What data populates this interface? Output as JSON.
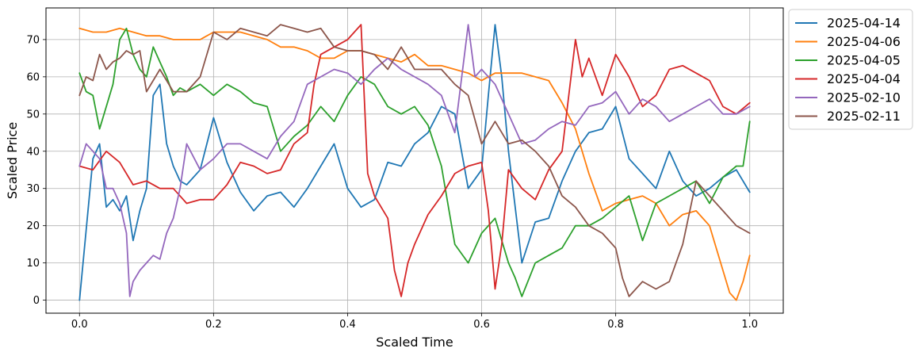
{
  "chart_data": {
    "type": "line",
    "title": "",
    "xlabel": "Scaled Time",
    "ylabel": "Scaled Price",
    "xlim": [
      -0.05,
      1.05
    ],
    "ylim": [
      -3.5,
      78.5
    ],
    "xticks": [
      0.0,
      0.2,
      0.4,
      0.6,
      0.8,
      1.0
    ],
    "xtick_labels": [
      "0.0",
      "0.2",
      "0.4",
      "0.6",
      "0.8",
      "1.0"
    ],
    "yticks": [
      0,
      10,
      20,
      30,
      40,
      50,
      60,
      70
    ],
    "ytick_labels": [
      "0",
      "10",
      "20",
      "30",
      "40",
      "50",
      "60",
      "70"
    ],
    "grid": true,
    "legend_position": "outside-right-top",
    "series": [
      {
        "name": "2025-04-14",
        "color": "#1f77b4",
        "x": [
          0.0,
          0.02,
          0.03,
          0.04,
          0.05,
          0.06,
          0.07,
          0.08,
          0.09,
          0.1,
          0.11,
          0.12,
          0.13,
          0.14,
          0.15,
          0.16,
          0.18,
          0.2,
          0.22,
          0.24,
          0.26,
          0.28,
          0.3,
          0.32,
          0.34,
          0.36,
          0.38,
          0.4,
          0.42,
          0.44,
          0.46,
          0.48,
          0.5,
          0.52,
          0.54,
          0.56,
          0.58,
          0.6,
          0.61,
          0.62,
          0.63,
          0.64,
          0.66,
          0.68,
          0.7,
          0.72,
          0.74,
          0.76,
          0.78,
          0.8,
          0.82,
          0.84,
          0.86,
          0.88,
          0.9,
          0.92,
          0.94,
          0.96,
          0.98,
          1.0
        ],
        "y": [
          0,
          38,
          42,
          25,
          27,
          24,
          28,
          16,
          24,
          30,
          55,
          58,
          42,
          36,
          32,
          31,
          35,
          49,
          37,
          29,
          24,
          28,
          29,
          25,
          30,
          36,
          42,
          30,
          25,
          27,
          37,
          36,
          42,
          45,
          52,
          50,
          30,
          35,
          55,
          74,
          60,
          40,
          10,
          21,
          22,
          32,
          40,
          45,
          46,
          52,
          38,
          34,
          30,
          40,
          32,
          28,
          30,
          33,
          35,
          29
        ]
      },
      {
        "name": "2025-04-06",
        "color": "#ff7f0e",
        "x": [
          0.0,
          0.02,
          0.04,
          0.06,
          0.08,
          0.1,
          0.12,
          0.14,
          0.16,
          0.18,
          0.2,
          0.22,
          0.24,
          0.26,
          0.28,
          0.3,
          0.32,
          0.34,
          0.36,
          0.38,
          0.4,
          0.42,
          0.44,
          0.46,
          0.48,
          0.5,
          0.52,
          0.54,
          0.56,
          0.58,
          0.6,
          0.62,
          0.64,
          0.66,
          0.68,
          0.7,
          0.72,
          0.74,
          0.76,
          0.78,
          0.8,
          0.82,
          0.84,
          0.86,
          0.88,
          0.9,
          0.92,
          0.94,
          0.96,
          0.97,
          0.98,
          0.99,
          1.0
        ],
        "y": [
          73,
          72,
          72,
          73,
          72,
          71,
          71,
          70,
          70,
          70,
          72,
          72,
          72,
          71,
          70,
          68,
          68,
          67,
          65,
          65,
          67,
          67,
          66,
          65,
          64,
          66,
          63,
          63,
          62,
          61,
          59,
          61,
          61,
          61,
          60,
          59,
          53,
          46,
          34,
          24,
          26,
          27,
          28,
          26,
          20,
          23,
          24,
          20,
          8,
          2,
          0,
          5,
          12
        ]
      },
      {
        "name": "2025-04-05",
        "color": "#2ca02c",
        "x": [
          0.0,
          0.01,
          0.02,
          0.03,
          0.04,
          0.05,
          0.06,
          0.07,
          0.08,
          0.09,
          0.1,
          0.11,
          0.12,
          0.13,
          0.14,
          0.15,
          0.16,
          0.18,
          0.2,
          0.22,
          0.24,
          0.26,
          0.28,
          0.3,
          0.32,
          0.34,
          0.36,
          0.38,
          0.4,
          0.42,
          0.44,
          0.46,
          0.48,
          0.5,
          0.52,
          0.54,
          0.56,
          0.58,
          0.6,
          0.62,
          0.64,
          0.65,
          0.66,
          0.68,
          0.7,
          0.72,
          0.74,
          0.76,
          0.78,
          0.8,
          0.82,
          0.84,
          0.86,
          0.88,
          0.9,
          0.92,
          0.94,
          0.96,
          0.98,
          0.99,
          1.0
        ],
        "y": [
          61,
          56,
          55,
          46,
          52,
          58,
          70,
          73,
          66,
          62,
          60,
          68,
          64,
          60,
          55,
          57,
          56,
          58,
          55,
          58,
          56,
          53,
          52,
          40,
          44,
          47,
          52,
          48,
          55,
          60,
          58,
          52,
          50,
          52,
          47,
          36,
          15,
          10,
          18,
          22,
          10,
          6,
          1,
          10,
          12,
          14,
          20,
          20,
          22,
          25,
          28,
          16,
          26,
          28,
          30,
          32,
          26,
          33,
          36,
          36,
          48
        ]
      },
      {
        "name": "2025-04-04",
        "color": "#d62728",
        "x": [
          0.0,
          0.02,
          0.04,
          0.06,
          0.08,
          0.1,
          0.12,
          0.14,
          0.16,
          0.18,
          0.2,
          0.22,
          0.24,
          0.26,
          0.28,
          0.3,
          0.32,
          0.34,
          0.35,
          0.36,
          0.38,
          0.4,
          0.42,
          0.43,
          0.44,
          0.46,
          0.47,
          0.48,
          0.49,
          0.5,
          0.52,
          0.54,
          0.56,
          0.58,
          0.6,
          0.61,
          0.62,
          0.63,
          0.64,
          0.66,
          0.68,
          0.7,
          0.72,
          0.74,
          0.75,
          0.76,
          0.78,
          0.8,
          0.82,
          0.84,
          0.86,
          0.88,
          0.9,
          0.92,
          0.94,
          0.96,
          0.98,
          1.0
        ],
        "y": [
          36,
          35,
          40,
          37,
          31,
          32,
          30,
          30,
          26,
          27,
          27,
          31,
          37,
          36,
          34,
          35,
          42,
          45,
          58,
          66,
          68,
          70,
          74,
          34,
          28,
          22,
          8,
          1,
          10,
          15,
          23,
          28,
          34,
          36,
          37,
          24,
          3,
          15,
          35,
          30,
          27,
          35,
          40,
          70,
          60,
          65,
          55,
          66,
          60,
          52,
          55,
          62,
          63,
          61,
          59,
          52,
          50,
          53
        ]
      },
      {
        "name": "2025-02-10",
        "color": "#9467bd",
        "x": [
          0.0,
          0.01,
          0.02,
          0.03,
          0.04,
          0.05,
          0.06,
          0.07,
          0.075,
          0.08,
          0.09,
          0.1,
          0.11,
          0.12,
          0.13,
          0.14,
          0.15,
          0.16,
          0.18,
          0.2,
          0.22,
          0.24,
          0.26,
          0.28,
          0.3,
          0.32,
          0.34,
          0.36,
          0.38,
          0.4,
          0.42,
          0.44,
          0.46,
          0.48,
          0.5,
          0.52,
          0.54,
          0.56,
          0.58,
          0.59,
          0.6,
          0.62,
          0.64,
          0.66,
          0.68,
          0.7,
          0.72,
          0.74,
          0.76,
          0.78,
          0.8,
          0.82,
          0.84,
          0.86,
          0.88,
          0.9,
          0.92,
          0.94,
          0.96,
          0.98,
          1.0
        ],
        "y": [
          36,
          42,
          40,
          38,
          30,
          30,
          26,
          18,
          1,
          5,
          8,
          10,
          12,
          11,
          18,
          22,
          30,
          42,
          35,
          38,
          42,
          42,
          40,
          38,
          44,
          48,
          58,
          60,
          62,
          61,
          58,
          62,
          65,
          62,
          60,
          58,
          55,
          45,
          74,
          60,
          62,
          58,
          50,
          42,
          43,
          46,
          48,
          47,
          52,
          53,
          56,
          50,
          54,
          52,
          48,
          50,
          52,
          54,
          50,
          50,
          52
        ]
      },
      {
        "name": "2025-02-11",
        "color": "#8c564b",
        "x": [
          0.0,
          0.01,
          0.02,
          0.03,
          0.04,
          0.05,
          0.06,
          0.07,
          0.08,
          0.09,
          0.1,
          0.12,
          0.14,
          0.16,
          0.18,
          0.2,
          0.22,
          0.24,
          0.26,
          0.28,
          0.3,
          0.32,
          0.34,
          0.36,
          0.38,
          0.4,
          0.42,
          0.44,
          0.46,
          0.48,
          0.5,
          0.52,
          0.54,
          0.56,
          0.58,
          0.6,
          0.62,
          0.64,
          0.66,
          0.68,
          0.7,
          0.72,
          0.74,
          0.76,
          0.78,
          0.8,
          0.81,
          0.82,
          0.84,
          0.86,
          0.88,
          0.9,
          0.92,
          0.94,
          0.96,
          0.98,
          1.0
        ],
        "y": [
          55,
          60,
          59,
          66,
          62,
          64,
          65,
          67,
          66,
          67,
          56,
          62,
          56,
          56,
          60,
          72,
          70,
          73,
          72,
          71,
          74,
          73,
          72,
          73,
          68,
          67,
          67,
          66,
          62,
          68,
          62,
          62,
          62,
          58,
          55,
          42,
          48,
          42,
          43,
          40,
          36,
          28,
          25,
          20,
          18,
          14,
          6,
          1,
          5,
          3,
          5,
          15,
          32,
          28,
          24,
          20,
          18
        ]
      }
    ]
  }
}
